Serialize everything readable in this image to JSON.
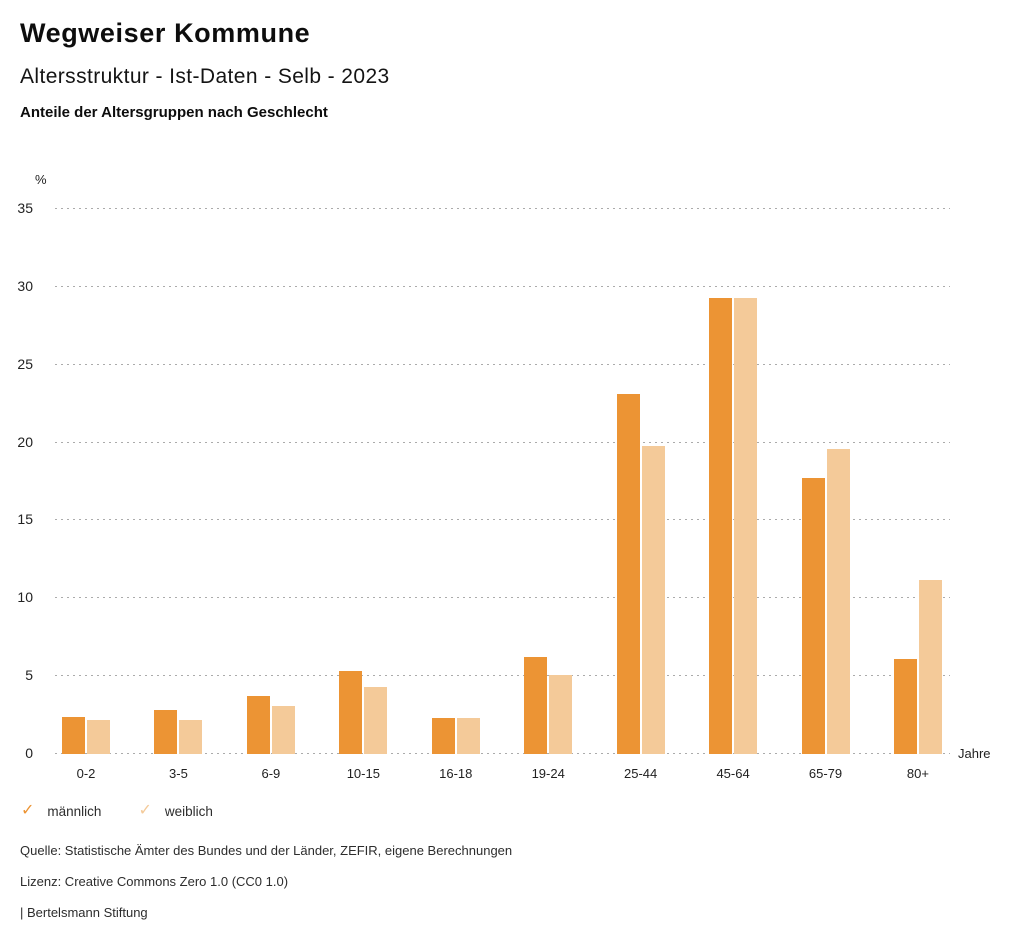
{
  "header": {
    "title": "Wegweiser Kommune",
    "subtitle": "Altersstruktur - Ist-Daten - Selb - 2023",
    "description": "Anteile der Altersgruppen nach Geschlecht"
  },
  "chart_data": {
    "type": "bar",
    "title": "Anteile der Altersgruppen nach Geschlecht",
    "unit_label": "%",
    "x_axis_label": "Jahre",
    "categories": [
      "0-2",
      "3-5",
      "6-9",
      "10-15",
      "16-18",
      "19-24",
      "25-44",
      "45-64",
      "65-79",
      "80+"
    ],
    "series": [
      {
        "key": "maennlich",
        "name": "männlich",
        "color": "#EC9434",
        "values": [
          2.4,
          2.8,
          3.7,
          5.3,
          2.3,
          6.2,
          23.1,
          29.3,
          17.7,
          6.1
        ]
      },
      {
        "key": "weiblich",
        "name": "weiblich",
        "color": "#F4CA99",
        "values": [
          2.2,
          2.2,
          3.1,
          4.3,
          2.3,
          5.1,
          19.8,
          29.3,
          19.6,
          11.2
        ]
      }
    ],
    "ylim": [
      0,
      35
    ],
    "yticks": [
      0,
      5,
      10,
      15,
      20,
      25,
      30,
      35
    ],
    "grid": "horizontal-dotted",
    "legend_position": "bottom-left"
  },
  "legend": {
    "check_icon": "✓"
  },
  "footer": {
    "source": "Quelle: Statistische Ämter des Bundes und der Länder, ZEFIR, eigene Berechnungen",
    "license": "Lizenz: Creative Commons Zero 1.0 (CC0 1.0)",
    "attribution": "| Bertelsmann Stiftung"
  },
  "colors": {
    "grid": "#ABABAB",
    "title_text": "#0D0D0D",
    "axis_text": "#222222"
  }
}
